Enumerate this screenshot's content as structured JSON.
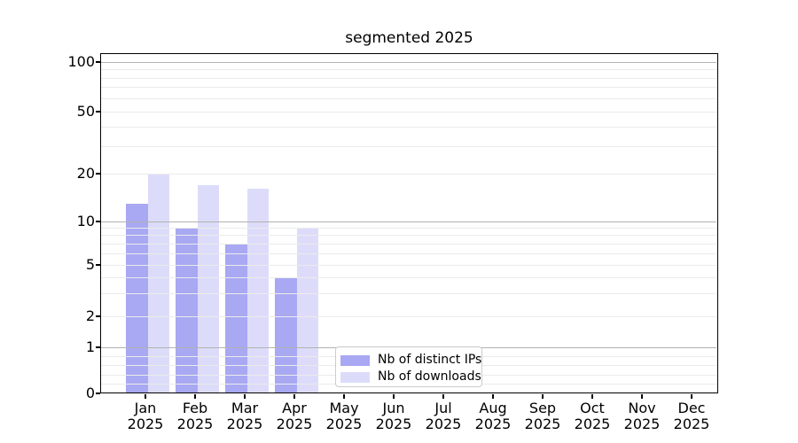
{
  "title": "segmented 2025",
  "legend": {
    "items": [
      {
        "label": "Nb of distinct IPs",
        "color": "#a8a8f3"
      },
      {
        "label": "Nb of downloads",
        "color": "#dcdcfa"
      }
    ]
  },
  "chart_data": {
    "type": "bar",
    "title": "segmented 2025",
    "categories": [
      "Jan 2025",
      "Feb 2025",
      "Mar 2025",
      "Apr 2025",
      "May 2025",
      "Jun 2025",
      "Jul 2025",
      "Aug 2025",
      "Sep 2025",
      "Oct 2025",
      "Nov 2025",
      "Dec 2025"
    ],
    "series": [
      {
        "name": "Nb of distinct IPs",
        "color": "#a8a8f3",
        "values": [
          13,
          9,
          7,
          4,
          0,
          0,
          0,
          0,
          0,
          0,
          0,
          0
        ]
      },
      {
        "name": "Nb of downloads",
        "color": "#dcdcfa",
        "values": [
          20,
          17,
          16,
          9,
          0,
          0,
          0,
          0,
          0,
          0,
          0,
          0
        ]
      }
    ],
    "ylim": [
      0,
      100
    ],
    "ytick_values": [
      0,
      1,
      2,
      5,
      10,
      20,
      50,
      100
    ],
    "ytick_labels": [
      "0",
      "1",
      "2",
      "5",
      "10",
      "20",
      "50",
      "100"
    ],
    "y_scale": "log-like above 1, linear between 0 and 1",
    "grid": {
      "on": true,
      "major_values": [
        1,
        10,
        100
      ],
      "minor_values": [
        0.2,
        0.4,
        0.6,
        0.8,
        2,
        3,
        4,
        5,
        6,
        7,
        8,
        9,
        20,
        30,
        40,
        50,
        60,
        70,
        80,
        90
      ]
    },
    "legend_position": "lower center"
  }
}
